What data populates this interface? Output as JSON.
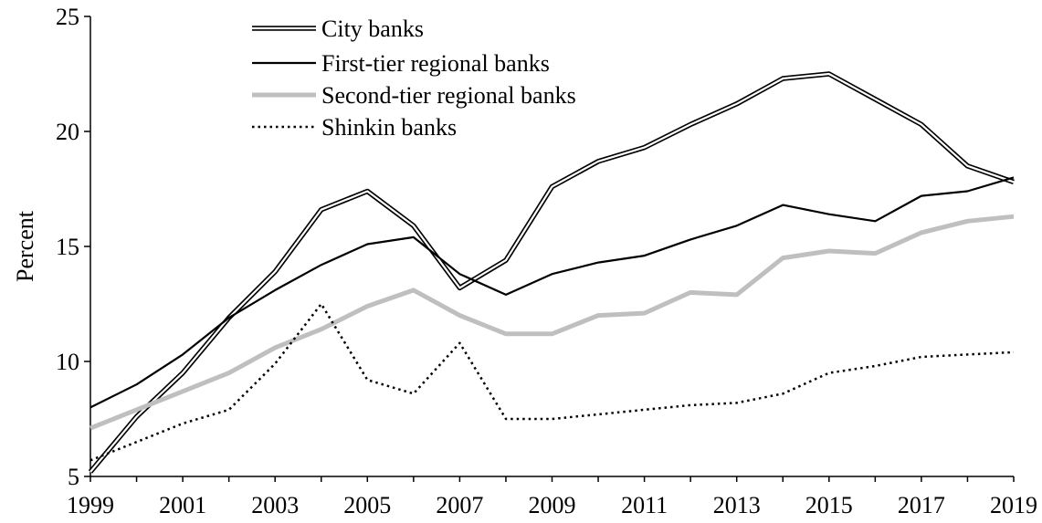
{
  "chart_data": {
    "type": "line",
    "title": "",
    "xlabel": "",
    "ylabel": "Percent",
    "xlim": [
      1999,
      2019
    ],
    "ylim": [
      5,
      25
    ],
    "x_ticks": [
      1999,
      2001,
      2003,
      2005,
      2007,
      2009,
      2011,
      2013,
      2015,
      2017,
      2019
    ],
    "y_ticks": [
      5,
      10,
      15,
      20,
      25
    ],
    "grid": false,
    "legend_position": "top-left",
    "x": [
      1999,
      2000,
      2001,
      2002,
      2003,
      2004,
      2005,
      2006,
      2007,
      2008,
      2009,
      2010,
      2011,
      2012,
      2013,
      2014,
      2015,
      2016,
      2017,
      2018,
      2019
    ],
    "series": [
      {
        "name": "City banks",
        "style": "double",
        "color": "#000000",
        "values": [
          5.2,
          7.6,
          9.5,
          11.9,
          13.9,
          16.6,
          17.4,
          15.9,
          13.2,
          14.4,
          17.6,
          18.7,
          19.3,
          20.3,
          21.2,
          22.3,
          22.5,
          21.4,
          20.3,
          18.5,
          17.8
        ]
      },
      {
        "name": "First-tier regional banks",
        "style": "solid",
        "color": "#000000",
        "values": [
          8.0,
          9.0,
          10.3,
          11.9,
          13.1,
          14.2,
          15.1,
          15.4,
          13.8,
          12.9,
          13.8,
          14.3,
          14.6,
          15.3,
          15.9,
          16.8,
          16.4,
          16.1,
          17.2,
          17.4,
          18.0
        ]
      },
      {
        "name": "Second-tier regional banks",
        "style": "thick",
        "color": "#bfbfbf",
        "values": [
          7.1,
          7.9,
          8.7,
          9.5,
          10.6,
          11.4,
          12.4,
          13.1,
          12.0,
          11.2,
          11.2,
          12.0,
          12.1,
          13.0,
          12.9,
          14.5,
          14.8,
          14.7,
          15.6,
          16.1,
          16.3
        ]
      },
      {
        "name": "Shinkin banks",
        "style": "dotted",
        "color": "#000000",
        "values": [
          5.7,
          6.5,
          7.3,
          7.9,
          9.9,
          12.5,
          9.2,
          8.6,
          10.8,
          7.5,
          7.5,
          7.7,
          7.9,
          8.1,
          8.2,
          8.6,
          9.5,
          9.8,
          10.2,
          10.3,
          10.4
        ]
      }
    ]
  }
}
